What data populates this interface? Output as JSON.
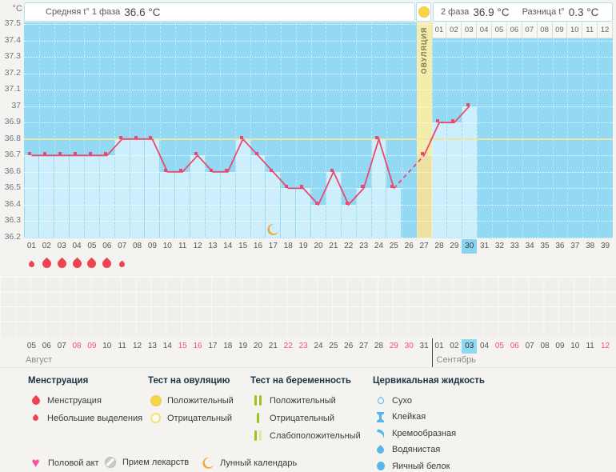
{
  "header": {
    "unit": "°C",
    "phase1_label": "Средняя t° 1 фаза",
    "phase1_value": "36.6 °C",
    "phase2_label": "2 фаза",
    "phase2_value": "36.9 °C",
    "diff_label": "Разница t°",
    "diff_value": "0.3 °C"
  },
  "chart_data": {
    "type": "line",
    "ylabel": "°C",
    "ylim": [
      36.2,
      37.5
    ],
    "ytick_step": 0.1,
    "cycle_days": [
      "01",
      "02",
      "03",
      "04",
      "05",
      "06",
      "07",
      "08",
      "09",
      "10",
      "11",
      "12",
      "13",
      "14",
      "15",
      "16",
      "17",
      "18",
      "19",
      "20",
      "21",
      "22",
      "23",
      "24",
      "25",
      "26",
      "27",
      "28",
      "29",
      "30",
      "31",
      "32",
      "33",
      "34",
      "35",
      "36",
      "37",
      "38",
      "39"
    ],
    "temps": [
      36.7,
      36.7,
      36.7,
      36.7,
      36.7,
      36.7,
      36.8,
      36.8,
      36.8,
      36.6,
      36.6,
      36.7,
      36.6,
      36.6,
      36.8,
      36.7,
      36.6,
      36.5,
      36.5,
      36.4,
      36.6,
      36.4,
      36.5,
      36.8,
      36.5,
      null,
      36.7,
      36.9,
      36.9,
      37.0,
      null,
      null,
      null,
      null,
      null,
      null,
      null,
      null,
      null
    ],
    "dashed_segment_days": [
      25,
      27
    ],
    "coverline": 36.8,
    "ovulation_day": 27,
    "ovulation_label": "ОВУЛЯЦИЯ",
    "post_ovulation_day_labels": [
      "01",
      "02",
      "03",
      "04",
      "05",
      "06",
      "07",
      "08",
      "09",
      "10",
      "11",
      "12"
    ],
    "today_cycle_day": 30,
    "lunar_day": 17,
    "menstruation": [
      {
        "day": 1,
        "size": "small"
      },
      {
        "day": 2,
        "size": "large"
      },
      {
        "day": 3,
        "size": "large"
      },
      {
        "day": 4,
        "size": "large"
      },
      {
        "day": 5,
        "size": "large"
      },
      {
        "day": 6,
        "size": "large"
      },
      {
        "day": 7,
        "size": "small"
      }
    ]
  },
  "calendar": {
    "months": [
      {
        "name": "Август",
        "days": [
          "05",
          "06",
          "07",
          "08",
          "09",
          "10",
          "11",
          "12",
          "13",
          "14",
          "15",
          "16",
          "17",
          "18",
          "19",
          "20",
          "21",
          "22",
          "23",
          "24",
          "25",
          "26",
          "27",
          "28",
          "29",
          "30",
          "31"
        ],
        "weekend_days": [
          "08",
          "09",
          "15",
          "16",
          "22",
          "23",
          "29",
          "30"
        ],
        "today": null
      },
      {
        "name": "Сентябрь",
        "days": [
          "01",
          "02",
          "03",
          "04",
          "05",
          "06",
          "07",
          "08",
          "09",
          "10",
          "11",
          "12"
        ],
        "weekend_days": [
          "05",
          "06",
          "12"
        ],
        "today": "03"
      }
    ]
  },
  "legend": {
    "columns": [
      {
        "title": "Менструация",
        "items": [
          {
            "icon": "menstruation-drop",
            "label": "Менструация"
          },
          {
            "icon": "spotting-drop",
            "label": "Небольшие выделения"
          }
        ]
      },
      {
        "title": "Тест на овуляцию",
        "items": [
          {
            "icon": "ovulation-test-positive",
            "label": "Положительный"
          },
          {
            "icon": "ovulation-test-negative",
            "label": "Отрицательный"
          }
        ]
      },
      {
        "title": "Тест на беременность",
        "items": [
          {
            "icon": "pregnancy-test-positive",
            "label": "Положительный"
          },
          {
            "icon": "pregnancy-test-negative",
            "label": "Отрицательный"
          },
          {
            "icon": "pregnancy-test-weak-positive",
            "label": "Слабоположительный"
          }
        ]
      },
      {
        "title": "Цервикальная жидкость",
        "items": [
          {
            "icon": "fluid-dry",
            "label": "Сухо"
          },
          {
            "icon": "fluid-sticky",
            "label": "Клейкая"
          },
          {
            "icon": "fluid-creamy",
            "label": "Кремообразная"
          },
          {
            "icon": "fluid-watery",
            "label": "Водянистая"
          },
          {
            "icon": "fluid-eggwhite",
            "label": "Яичный белок"
          }
        ]
      }
    ],
    "actions": [
      {
        "icon": "sex-heart",
        "label": "Половой акт"
      },
      {
        "icon": "medication",
        "label": "Прием лекарств"
      },
      {
        "icon": "lunar-moon",
        "label": "Лунный календарь"
      }
    ]
  },
  "colors": {
    "line_pink": "#e84a6f",
    "plot_background": "#93d9f3",
    "bar_fill": "#cdeefb",
    "ovulation_band": "#f4ecab",
    "coverline_yellow": "#ece79f",
    "weekend_date": "#fb4d7e",
    "today_highlight": "#86d4f2",
    "menstruation_red": "#ef4251",
    "heart_pink": "#fb4fa0",
    "moon_orange": "#f7a42c",
    "pregnancy_green": "#9cc31e",
    "fluid_blue": "#57b7ea",
    "test_yellow": "#f8d545"
  }
}
